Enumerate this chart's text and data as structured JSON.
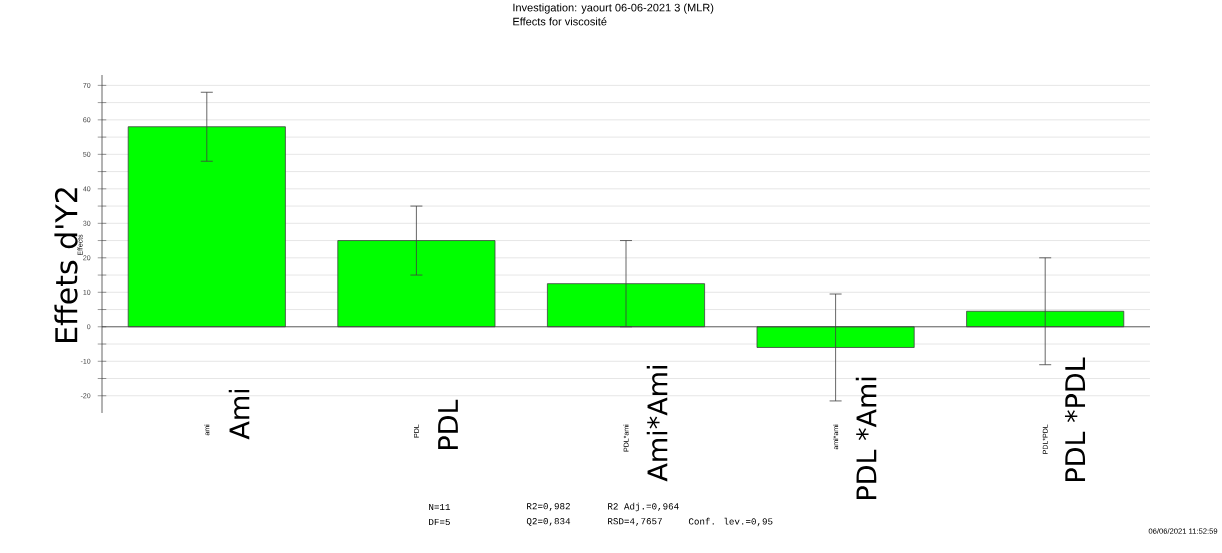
{
  "chart_data": {
    "type": "bar",
    "title": "Investigation: yaourt 06-06-2021 3 (MLR)",
    "subtitle": "Effects for viscosité",
    "ylabel": "Effets d'Y2",
    "categories": [
      "ami",
      "PDL",
      "PDL*ami",
      "ami*ami",
      "PDL*PDL"
    ],
    "values": [
      58,
      25,
      12.5,
      -6,
      4.5
    ],
    "errors": [
      10,
      10,
      12.5,
      15.5,
      15.5
    ],
    "color": "#00ff00",
    "ylim": [
      -25,
      73
    ],
    "yticks": [
      -20,
      {
        "value": -15,
        "label": null
      },
      -10,
      {
        "value": -5,
        "label": null
      },
      0,
      {
        "value": 5,
        "label": null
      },
      10,
      {
        "value": 15,
        "label": null
      },
      20,
      {
        "value": 25,
        "label": null
      },
      30,
      {
        "value": 35,
        "label": null
      },
      40,
      {
        "value": 45,
        "label": null
      },
      50,
      {
        "value": 55,
        "label": null
      },
      60,
      {
        "value": 65,
        "label": null
      },
      70
    ],
    "grid": "y",
    "annotations": [
      "Ami",
      "PDL",
      "Ami*Ami",
      "PDL *Ami",
      "PDL *PDL",
      "Effects",
      "N=11",
      "R2=0,982",
      "R2 Adj.=0,964",
      "DF=5",
      "Q2=0,834",
      "RSD=4,7657",
      "Conf. lev.=0,95",
      "06/06/2021 11:52:59"
    ]
  }
}
